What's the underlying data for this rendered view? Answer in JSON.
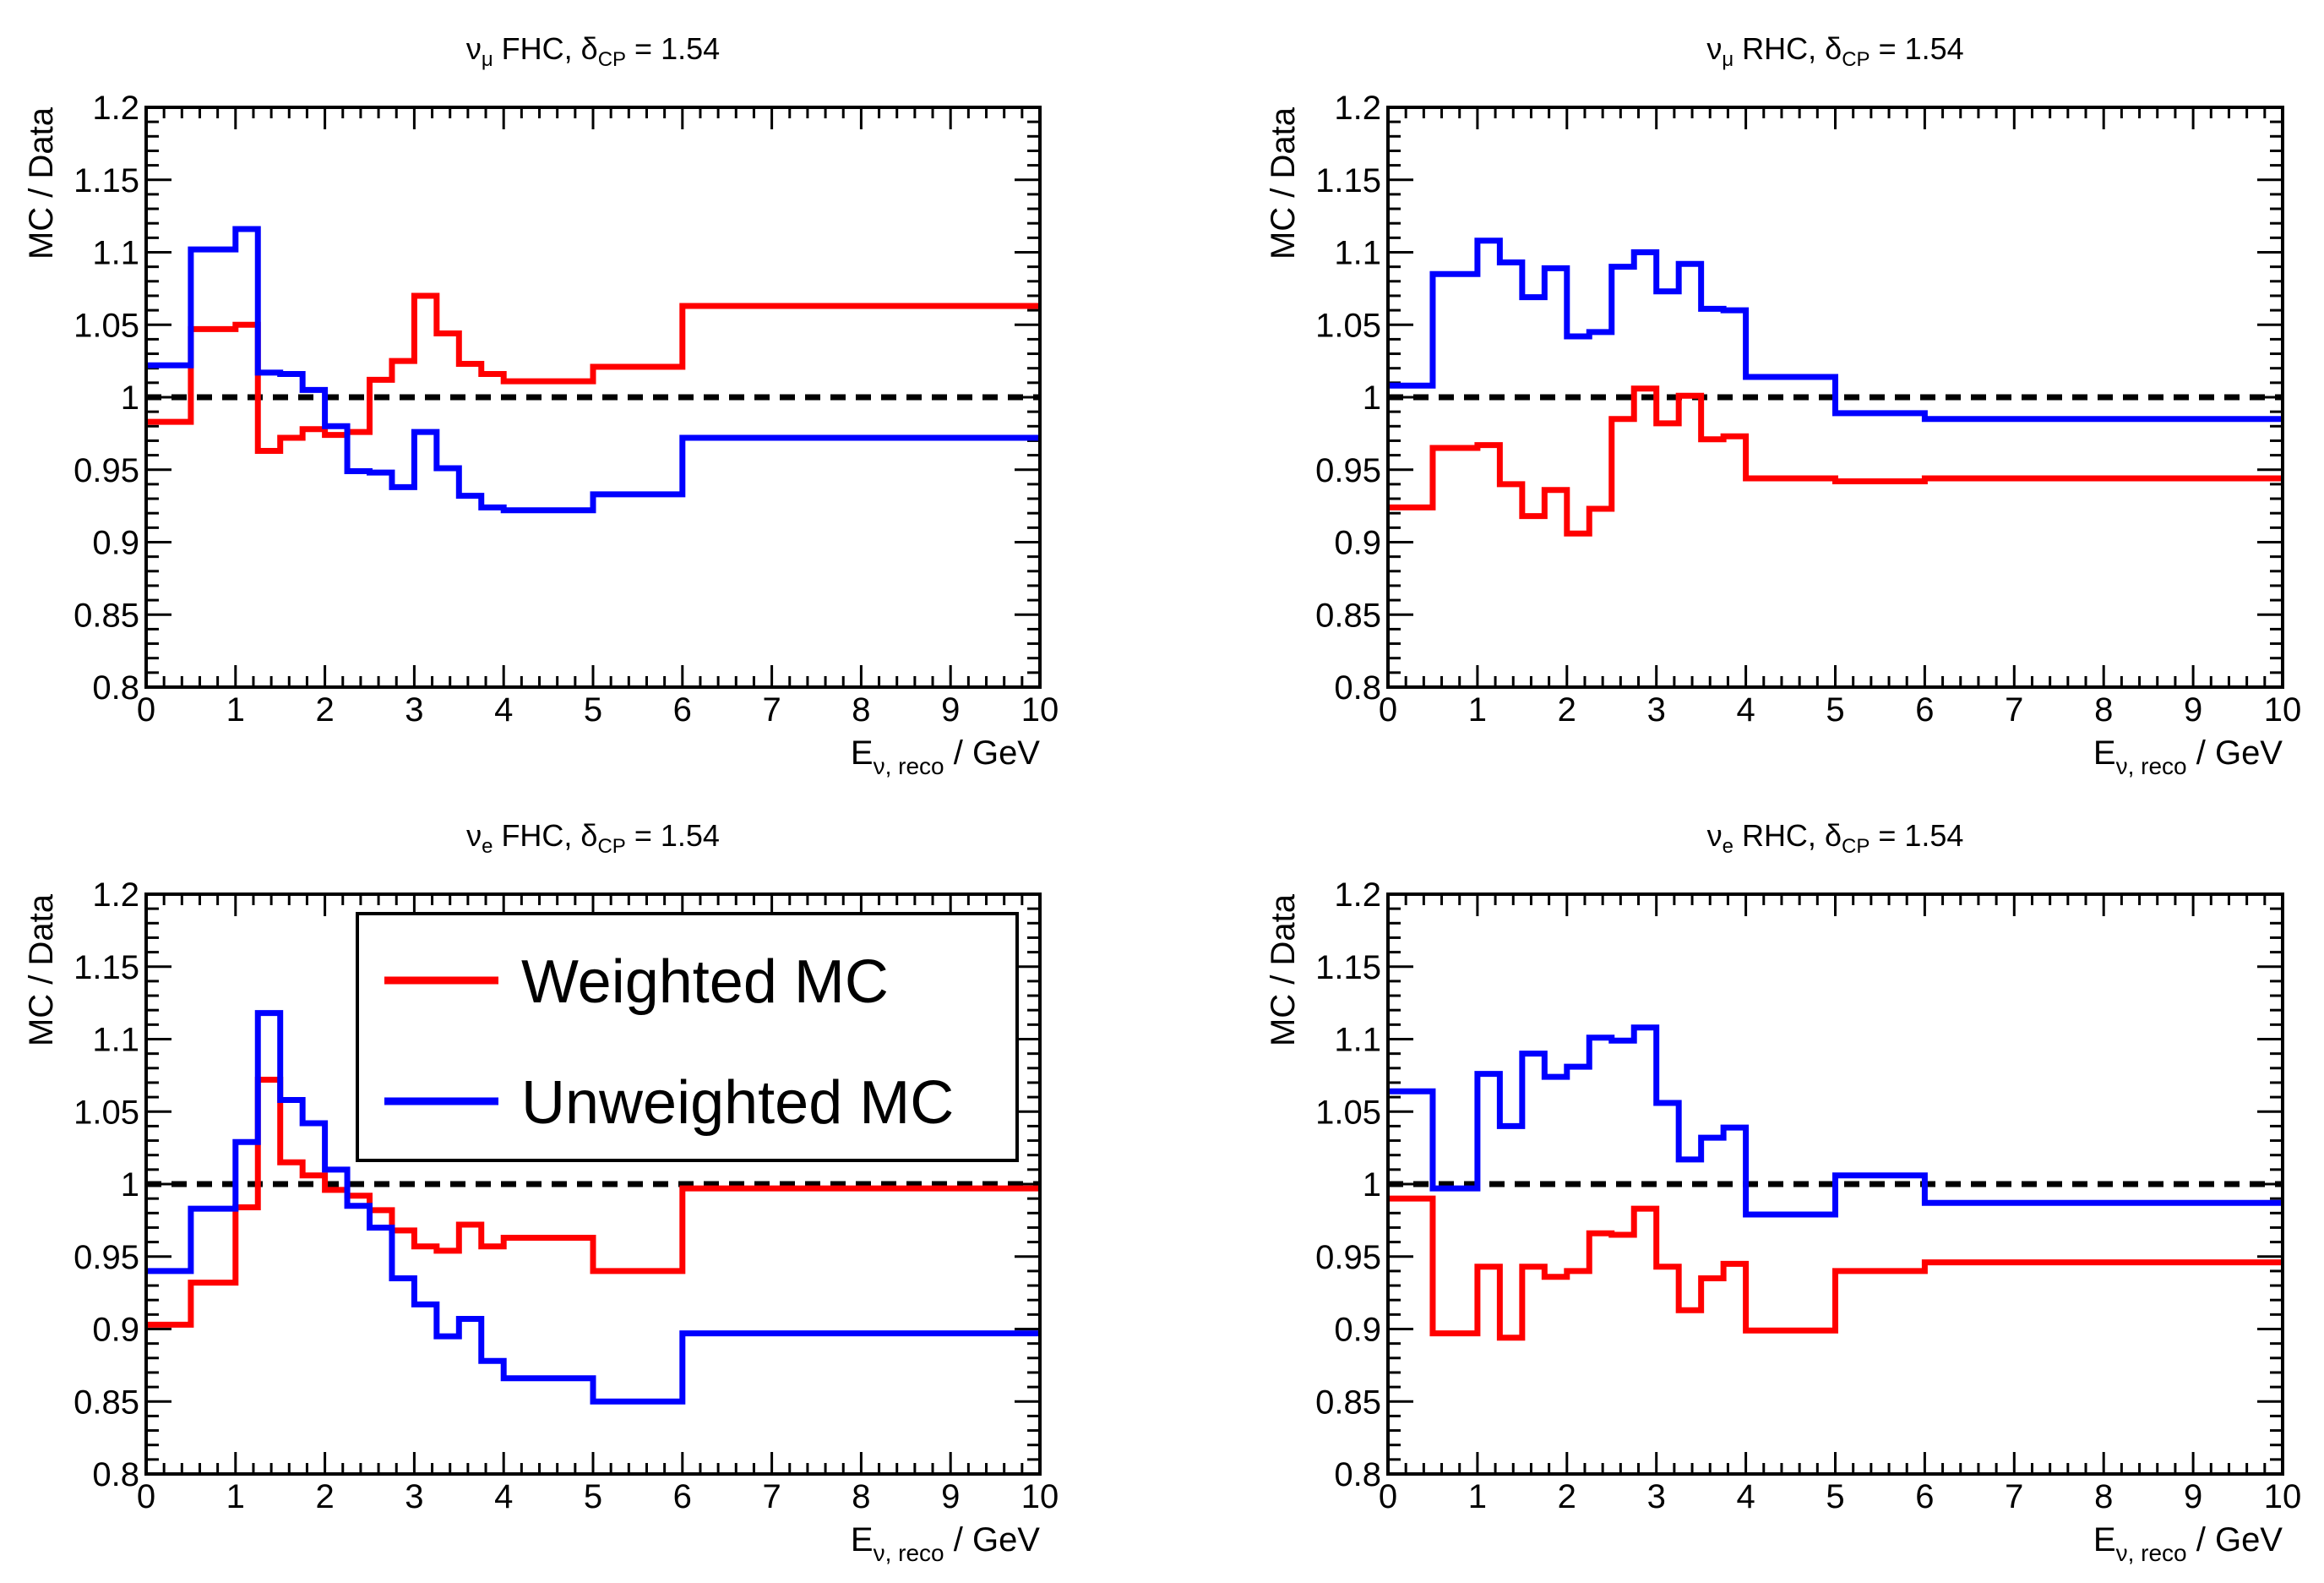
{
  "colors": {
    "weighted": "#ff0000",
    "unweighted": "#0000ff",
    "reference": "#000000"
  },
  "legend": {
    "entries": [
      {
        "label": "Weighted MC",
        "color": "#ff0000"
      },
      {
        "label": "Unweighted MC",
        "color": "#0000ff"
      }
    ],
    "placement": "top-center of bottom-left panel"
  },
  "chart_data": [
    {
      "type": "line",
      "style": "step",
      "title": "νμ FHC, δCP = 1.54",
      "title_parts": {
        "nu": "ν",
        "flavor": "μ",
        "beam": " FHC, δ",
        "sub": "CP",
        "val": " = 1.54"
      },
      "ylabel": "MC / Data",
      "xlabel": "Eν, reco / GeV",
      "xlabel_parts": {
        "main": "E",
        "sub": "ν, reco",
        "tail": " / GeV"
      },
      "xlim": [
        0,
        10
      ],
      "ylim": [
        0.8,
        1.2
      ],
      "xticks": [
        "0",
        "1",
        "2",
        "3",
        "4",
        "5",
        "6",
        "7",
        "8",
        "9",
        "10"
      ],
      "yticks": [
        "0.8",
        "0.85",
        "0.9",
        "0.95",
        "1",
        "1.05",
        "1.1",
        "1.15",
        "1.2"
      ],
      "reference_line": 1,
      "bin_edges": [
        0,
        0.5,
        1,
        1.25,
        1.5,
        1.75,
        2,
        2.25,
        2.5,
        2.75,
        3,
        3.25,
        3.5,
        3.75,
        4,
        5,
        6,
        10
      ],
      "series": [
        {
          "name": "Weighted MC",
          "color": "#ff0000",
          "values": [
            0.983,
            1.047,
            1.05,
            0.963,
            0.972,
            0.978,
            0.974,
            0.976,
            1.012,
            1.025,
            1.07,
            1.044,
            1.023,
            1.016,
            1.011,
            1.021,
            1.063
          ]
        },
        {
          "name": "Unweighted MC",
          "color": "#0000ff",
          "values": [
            1.022,
            1.102,
            1.116,
            1.017,
            1.016,
            1.005,
            0.98,
            0.949,
            0.948,
            0.938,
            0.976,
            0.951,
            0.932,
            0.924,
            0.922,
            0.933,
            0.972
          ]
        }
      ]
    },
    {
      "type": "line",
      "style": "step",
      "title": "νμ RHC, δCP = 1.54",
      "title_parts": {
        "nu": "ν",
        "flavor": "μ",
        "beam": " RHC, δ",
        "sub": "CP",
        "val": " = 1.54"
      },
      "ylabel": "MC / Data",
      "xlabel": "Eν, reco / GeV",
      "xlabel_parts": {
        "main": "E",
        "sub": "ν, reco",
        "tail": " / GeV"
      },
      "xlim": [
        0,
        10
      ],
      "ylim": [
        0.8,
        1.2
      ],
      "xticks": [
        "0",
        "1",
        "2",
        "3",
        "4",
        "5",
        "6",
        "7",
        "8",
        "9",
        "10"
      ],
      "yticks": [
        "0.8",
        "0.85",
        "0.9",
        "0.95",
        "1",
        "1.05",
        "1.1",
        "1.15",
        "1.2"
      ],
      "reference_line": 1,
      "bin_edges": [
        0,
        0.5,
        1,
        1.25,
        1.5,
        1.75,
        2,
        2.25,
        2.5,
        2.75,
        3,
        3.25,
        3.5,
        3.75,
        4,
        5,
        6,
        10
      ],
      "series": [
        {
          "name": "Weighted MC",
          "color": "#ff0000",
          "values": [
            0.924,
            0.965,
            0.967,
            0.94,
            0.918,
            0.936,
            0.906,
            0.923,
            0.985,
            1.006,
            0.982,
            1.001,
            0.971,
            0.973,
            0.944,
            0.942,
            0.944
          ]
        },
        {
          "name": "Unweighted MC",
          "color": "#0000ff",
          "values": [
            1.008,
            1.085,
            1.108,
            1.093,
            1.069,
            1.089,
            1.042,
            1.045,
            1.09,
            1.1,
            1.073,
            1.092,
            1.061,
            1.06,
            1.014,
            0.989,
            0.985
          ]
        }
      ]
    },
    {
      "type": "line",
      "style": "step",
      "title": "νe FHC, δCP = 1.54",
      "title_parts": {
        "nu": "ν",
        "flavor": "e",
        "beam": " FHC, δ",
        "sub": "CP",
        "val": " = 1.54"
      },
      "ylabel": "MC / Data",
      "xlabel": "Eν, reco / GeV",
      "xlabel_parts": {
        "main": "E",
        "sub": "ν, reco",
        "tail": " / GeV"
      },
      "xlim": [
        0,
        10
      ],
      "ylim": [
        0.8,
        1.2
      ],
      "xticks": [
        "0",
        "1",
        "2",
        "3",
        "4",
        "5",
        "6",
        "7",
        "8",
        "9",
        "10"
      ],
      "yticks": [
        "0.8",
        "0.85",
        "0.9",
        "0.95",
        "1",
        "1.05",
        "1.1",
        "1.15",
        "1.2"
      ],
      "reference_line": 1,
      "bin_edges": [
        0,
        0.5,
        1,
        1.25,
        1.5,
        1.75,
        2,
        2.25,
        2.5,
        2.75,
        3,
        3.25,
        3.5,
        3.75,
        4,
        5,
        6,
        10
      ],
      "series": [
        {
          "name": "Weighted MC",
          "color": "#ff0000",
          "values": [
            0.903,
            0.932,
            0.984,
            1.072,
            1.015,
            1.006,
            0.996,
            0.992,
            0.982,
            0.968,
            0.957,
            0.954,
            0.972,
            0.957,
            0.963,
            0.94,
            0.997
          ]
        },
        {
          "name": "Unweighted MC",
          "color": "#0000ff",
          "values": [
            0.94,
            0.983,
            1.029,
            1.118,
            1.058,
            1.042,
            1.01,
            0.985,
            0.97,
            0.935,
            0.917,
            0.895,
            0.907,
            0.878,
            0.866,
            0.85,
            0.897
          ]
        }
      ]
    },
    {
      "type": "line",
      "style": "step",
      "title": "νe RHC, δCP = 1.54",
      "title_parts": {
        "nu": "ν",
        "flavor": "e",
        "beam": " RHC, δ",
        "sub": "CP",
        "val": " = 1.54"
      },
      "ylabel": "MC / Data",
      "xlabel": "Eν, reco / GeV",
      "xlabel_parts": {
        "main": "E",
        "sub": "ν, reco",
        "tail": " / GeV"
      },
      "xlim": [
        0,
        10
      ],
      "ylim": [
        0.8,
        1.2
      ],
      "xticks": [
        "0",
        "1",
        "2",
        "3",
        "4",
        "5",
        "6",
        "7",
        "8",
        "9",
        "10"
      ],
      "yticks": [
        "0.8",
        "0.85",
        "0.9",
        "0.95",
        "1",
        "1.05",
        "1.1",
        "1.15",
        "1.2"
      ],
      "reference_line": 1,
      "bin_edges": [
        0,
        0.5,
        1,
        1.25,
        1.5,
        1.75,
        2,
        2.25,
        2.5,
        2.75,
        3,
        3.25,
        3.5,
        3.75,
        4,
        5,
        6,
        10
      ],
      "series": [
        {
          "name": "Weighted MC",
          "color": "#ff0000",
          "values": [
            0.99,
            0.897,
            0.943,
            0.894,
            0.943,
            0.936,
            0.94,
            0.966,
            0.965,
            0.983,
            0.943,
            0.913,
            0.935,
            0.945,
            0.899,
            0.94,
            0.946
          ]
        },
        {
          "name": "Unweighted MC",
          "color": "#0000ff",
          "values": [
            1.064,
            0.997,
            1.076,
            1.04,
            1.09,
            1.074,
            1.081,
            1.101,
            1.099,
            1.108,
            1.056,
            1.017,
            1.032,
            1.039,
            0.979,
            1.006,
            0.987
          ]
        }
      ]
    }
  ]
}
